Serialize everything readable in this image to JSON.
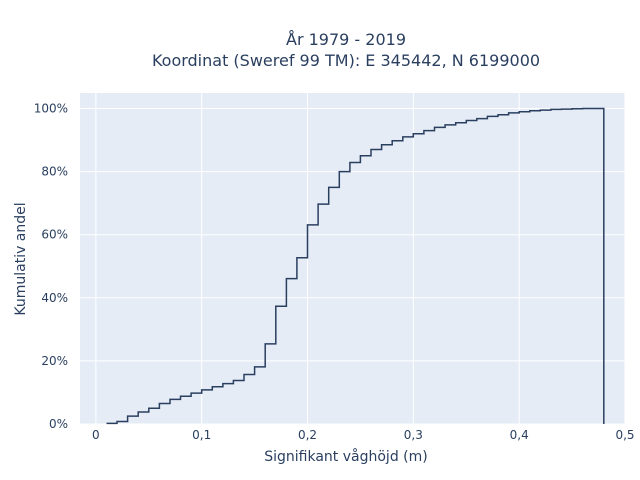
{
  "chart_data": {
    "type": "line",
    "line_shape": "step-post",
    "title_line1": "År 1979 - 2019",
    "title_line2": "Koordinat (Sweref 99 TM): E 345442, N 6199000",
    "xlabel": "Signifikant våghöjd (m)",
    "ylabel": "Kumulativ andel",
    "xlim": [
      -0.015,
      0.5
    ],
    "ylim": [
      0,
      1.0
    ],
    "x_ticks": [
      0,
      0.1,
      0.2,
      0.3,
      0.4,
      0.5
    ],
    "x_tick_labels": [
      "0",
      "0,1",
      "0,2",
      "0,3",
      "0,4",
      "0,5"
    ],
    "y_ticks": [
      0,
      0.2,
      0.4,
      0.6,
      0.8,
      1.0
    ],
    "y_tick_labels": [
      "0%",
      "20%",
      "40%",
      "60%",
      "80%",
      "100%"
    ],
    "grid": true,
    "colors": {
      "line": "#2a3f5f",
      "plot_bg": "#e5ecf6",
      "grid": "#ffffff",
      "text": "#2a3f5f"
    },
    "series": [
      {
        "x": [
          0.01,
          0.02,
          0.03,
          0.04,
          0.05,
          0.06,
          0.07,
          0.08,
          0.09,
          0.1,
          0.11,
          0.12,
          0.13,
          0.14,
          0.15,
          0.16,
          0.17,
          0.18,
          0.19,
          0.2,
          0.21,
          0.22,
          0.23,
          0.24,
          0.25,
          0.26,
          0.27,
          0.28,
          0.29,
          0.3,
          0.31,
          0.32,
          0.33,
          0.34,
          0.35,
          0.36,
          0.37,
          0.38,
          0.39,
          0.4,
          0.41,
          0.42,
          0.43,
          0.44,
          0.45,
          0.46,
          0.47,
          0.48
        ],
        "y": [
          0.002,
          0.008,
          0.025,
          0.038,
          0.05,
          0.065,
          0.078,
          0.088,
          0.098,
          0.108,
          0.118,
          0.128,
          0.138,
          0.157,
          0.181,
          0.254,
          0.373,
          0.461,
          0.527,
          0.631,
          0.697,
          0.75,
          0.8,
          0.829,
          0.85,
          0.87,
          0.885,
          0.898,
          0.91,
          0.92,
          0.93,
          0.94,
          0.948,
          0.955,
          0.962,
          0.968,
          0.975,
          0.98,
          0.986,
          0.99,
          0.993,
          0.995,
          0.997,
          0.998,
          0.999,
          1.0,
          1.0,
          0.0
        ]
      }
    ]
  }
}
